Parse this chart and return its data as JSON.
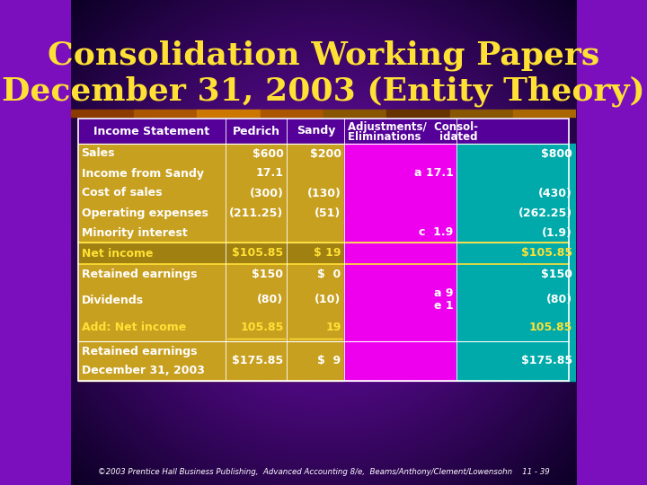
{
  "title_line1": "Consolidation Working Papers",
  "title_line2": "December 31, 2003 (Entity Theory)",
  "title_color": "#FFE135",
  "bg_purple": "#7B0FBE",
  "bg_dark": "#1A0035",
  "stripe_color": "#8B4513",
  "col_gold": "#C8A020",
  "col_magenta": "#EE00EE",
  "col_teal": "#00AAAA",
  "net_income_bg": "#A08010",
  "text_white": "#FFFFFF",
  "text_gold": "#FFE135",
  "footer": "©2003 Prentice Hall Business Publishing,  Advanced Accounting 8/e,  Beams/Anthony/Clement/Lowensohn    11 - 39",
  "income_rows": [
    [
      "Sales",
      "$600",
      "$200",
      "",
      "$800"
    ],
    [
      "Income from Sandy",
      "17.1",
      "",
      "a 17.1",
      ""
    ],
    [
      "Cost of sales",
      "(300)",
      "(130)",
      "",
      "(430)"
    ],
    [
      "Operating expenses",
      "(211.25)",
      "(51)",
      "",
      "(262.25)"
    ],
    [
      "Minority interest",
      "",
      "",
      "c  1.9",
      "(1.9)"
    ]
  ],
  "net_income_row": [
    "Net income",
    "$105.85",
    "$ 19",
    "",
    "$105.85"
  ],
  "retained_rows": [
    [
      "Retained earnings",
      "$150",
      "$  0",
      "",
      "$150"
    ],
    [
      "Dividends",
      "(80)",
      "(10)",
      "a 9\ne 1",
      "(80)"
    ],
    [
      "Add: Net income",
      "105.85",
      "19",
      "",
      "105.85"
    ],
    [
      "Retained earnings\nDecember 31, 2003",
      "$175.85",
      "$  9",
      "",
      "$175.85"
    ]
  ]
}
